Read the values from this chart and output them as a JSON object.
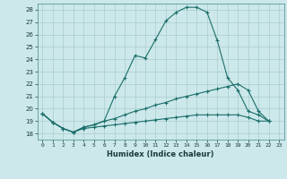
{
  "title": "",
  "xlabel": "Humidex (Indice chaleur)",
  "background_color": "#cce8ea",
  "grid_color": "#aacccc",
  "line_color": "#1a6e6a",
  "xlim": [
    -0.5,
    23.5
  ],
  "ylim": [
    17.5,
    28.5
  ],
  "yticks": [
    18,
    19,
    20,
    21,
    22,
    23,
    24,
    25,
    26,
    27,
    28
  ],
  "xticks": [
    0,
    1,
    2,
    3,
    4,
    5,
    6,
    7,
    8,
    9,
    10,
    11,
    12,
    13,
    14,
    15,
    16,
    17,
    18,
    19,
    20,
    21,
    22,
    23
  ],
  "series": [
    [
      19.6,
      18.9,
      18.4,
      18.1,
      18.5,
      18.7,
      19.0,
      21.0,
      22.5,
      24.3,
      24.1,
      25.6,
      27.1,
      27.8,
      28.2,
      28.2,
      27.8,
      25.5,
      22.5,
      21.5,
      19.8,
      19.5,
      19.0
    ],
    [
      19.6,
      18.9,
      18.4,
      18.1,
      18.5,
      18.7,
      19.0,
      19.2,
      19.5,
      19.8,
      20.0,
      20.3,
      20.5,
      20.8,
      21.0,
      21.2,
      21.4,
      21.6,
      21.8,
      22.0,
      21.5,
      19.8,
      19.0
    ],
    [
      19.6,
      18.9,
      18.4,
      18.1,
      18.4,
      18.5,
      18.6,
      18.7,
      18.8,
      18.9,
      19.0,
      19.1,
      19.2,
      19.3,
      19.4,
      19.5,
      19.5,
      19.5,
      19.5,
      19.5,
      19.3,
      19.0,
      19.0
    ]
  ]
}
